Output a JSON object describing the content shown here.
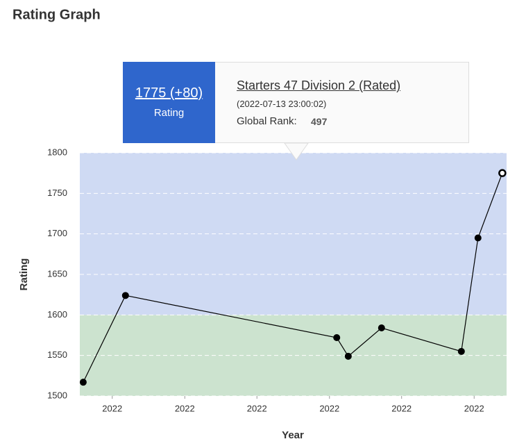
{
  "header": {
    "title": "Rating Graph"
  },
  "tooltip": {
    "rating_change": "1775 (+80)",
    "rating_label": "Rating",
    "contest": "Starters 47 Division 2 (Rated)",
    "date": "(2022-07-13 23:00:02)",
    "rank_label": "Global Rank:",
    "rank": "497"
  },
  "chart_data": {
    "type": "line",
    "x_label": "Year",
    "y_label": "Rating",
    "x": [
      0.8,
      10.7,
      60.2,
      62.9,
      70.7,
      89.4,
      93.3,
      99.0
    ],
    "series": [
      {
        "name": "Rating",
        "color": "#000000",
        "values": [
          1517,
          1624,
          1572,
          1549,
          1584,
          1555,
          1695,
          1775
        ]
      }
    ],
    "highlighted": 7,
    "xlim": [
      0,
      100
    ],
    "xticks": [
      {
        "value": 7.6,
        "label": "2022"
      },
      {
        "value": 24.6,
        "label": "2022"
      },
      {
        "value": 41.5,
        "label": "2022"
      },
      {
        "value": 58.5,
        "label": "2022"
      },
      {
        "value": 75.4,
        "label": "2022"
      },
      {
        "value": 92.4,
        "label": "2022"
      }
    ],
    "ylim": [
      1500,
      1800
    ],
    "yticks": [
      1500,
      1550,
      1600,
      1650,
      1700,
      1750,
      1800
    ],
    "bands": [
      {
        "from": 1500,
        "to": 1600,
        "color": "#cce3cf"
      },
      {
        "from": 1600,
        "to": 1800,
        "color": "#cfdaf3"
      }
    ],
    "grid": true
  }
}
